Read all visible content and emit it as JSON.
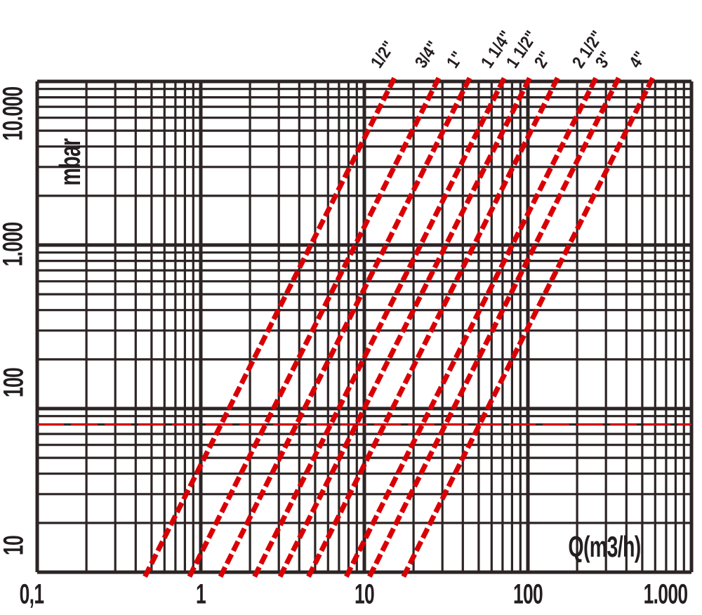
{
  "chart_data": {
    "type": "line",
    "scale": "log-log",
    "title": "",
    "xlabel": "Q(m3/h)",
    "ylabel": "mbar",
    "xlim": [
      0.1,
      1000
    ],
    "ylim": [
      10,
      10000
    ],
    "x_ticks": [
      "0,1",
      "1",
      "10",
      "100",
      "1.000"
    ],
    "x_tick_values": [
      0.1,
      1,
      10,
      100,
      1000
    ],
    "y_ticks": [
      "10",
      "100",
      "1.000",
      "10.000"
    ],
    "y_tick_values": [
      10,
      100,
      1000,
      10000
    ],
    "grid": "log minor gridlines at 2-9 within each decade, both axes",
    "slope_note": "each pipe line has slope 2 on log-log (pressure drop proportional to Q squared)",
    "line_color": "#d80005",
    "grid_color": "#2c2425",
    "series": [
      {
        "label": "1/2\"",
        "q_at_10_mbar": 0.47,
        "q_at_10000_mbar": 14.9
      },
      {
        "label": "3/4\"",
        "q_at_10_mbar": 0.88,
        "q_at_10000_mbar": 27.8
      },
      {
        "label": "1\"",
        "q_at_10_mbar": 1.36,
        "q_at_10000_mbar": 43
      },
      {
        "label": "1 1/4\"",
        "q_at_10_mbar": 2.2,
        "q_at_10000_mbar": 70
      },
      {
        "label": "1 1/2\"",
        "q_at_10_mbar": 3.15,
        "q_at_10000_mbar": 100
      },
      {
        "label": "2\"",
        "q_at_10_mbar": 4.7,
        "q_at_10000_mbar": 148
      },
      {
        "label": "2 1/2\"",
        "q_at_10_mbar": 8.0,
        "q_at_10000_mbar": 254
      },
      {
        "label": "3\"",
        "q_at_10_mbar": 11.1,
        "q_at_10000_mbar": 350
      },
      {
        "label": "4\"",
        "q_at_10_mbar": 17.9,
        "q_at_10000_mbar": 566
      }
    ],
    "reference_line": {
      "value_mbar": 80,
      "color": "#e30613",
      "style": "dashed"
    }
  }
}
